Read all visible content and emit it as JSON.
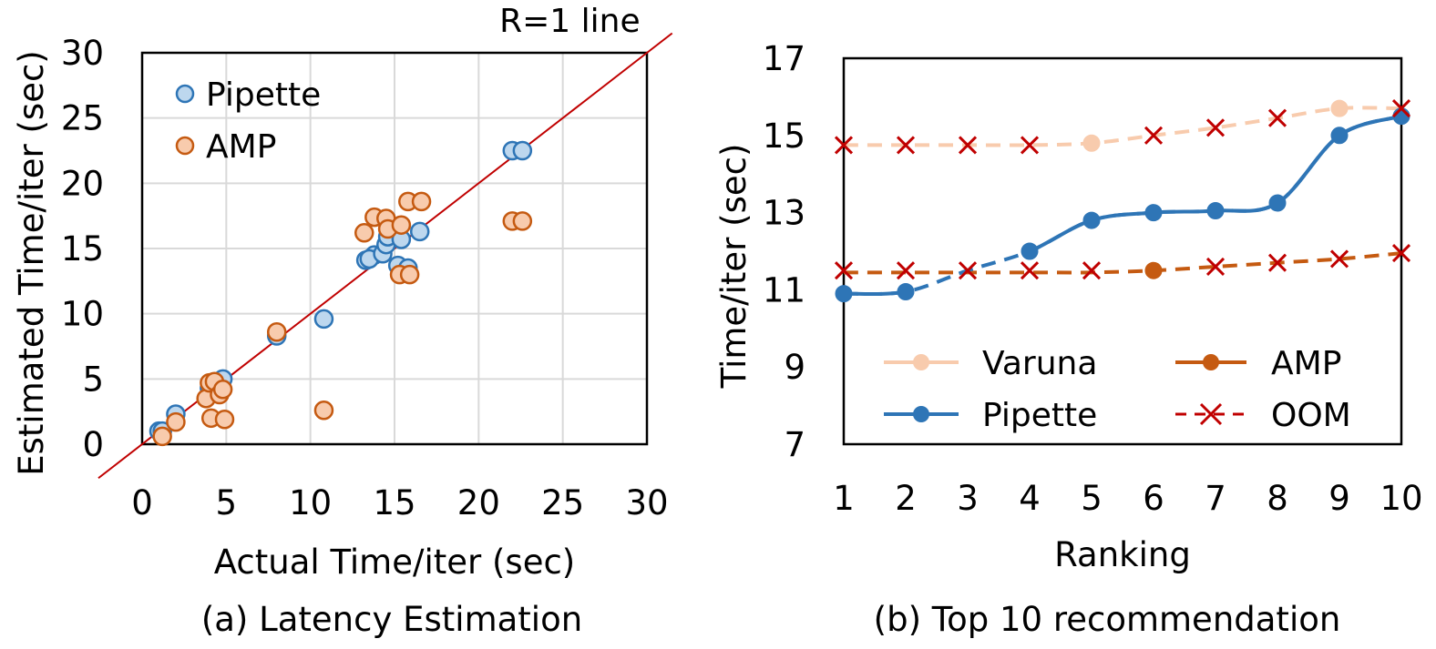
{
  "chart_data": [
    {
      "type": "scatter",
      "caption": "(a) Latency Estimation",
      "xlabel": "Actual Time/iter (sec)",
      "ylabel": "Estimated Time/iter (sec)",
      "xlim": [
        0,
        30
      ],
      "ylim": [
        0,
        30
      ],
      "xticks": [
        "0",
        "5",
        "10",
        "15",
        "20",
        "25",
        "30"
      ],
      "yticks": [
        "0",
        "5",
        "10",
        "15",
        "20",
        "25",
        "30"
      ],
      "grid": true,
      "legend_position": "top-left",
      "reference_line": {
        "label": "R=1 line",
        "color": "#C00000"
      },
      "series": [
        {
          "name": "Pipette",
          "fill": "#BDD7EE",
          "stroke": "#2E75B6",
          "points": [
            [
              1.0,
              1.0
            ],
            [
              1.2,
              1.0
            ],
            [
              2.0,
              2.3
            ],
            [
              4.0,
              4.3
            ],
            [
              4.2,
              4.0
            ],
            [
              4.8,
              5.0
            ],
            [
              8.0,
              8.3
            ],
            [
              10.8,
              9.6
            ],
            [
              13.3,
              14.1
            ],
            [
              13.8,
              14.5
            ],
            [
              13.5,
              14.2
            ],
            [
              14.3,
              14.6
            ],
            [
              14.5,
              15.3
            ],
            [
              14.6,
              15.9
            ],
            [
              15.4,
              15.7
            ],
            [
              15.2,
              13.7
            ],
            [
              15.8,
              13.5
            ],
            [
              16.5,
              16.3
            ],
            [
              22.0,
              22.5
            ],
            [
              22.6,
              22.5
            ]
          ]
        },
        {
          "name": "AMP",
          "fill": "#F8CBAD",
          "stroke": "#C55A11",
          "points": [
            [
              1.2,
              0.6
            ],
            [
              2.0,
              1.7
            ],
            [
              3.8,
              3.5
            ],
            [
              4.0,
              4.7
            ],
            [
              4.3,
              4.8
            ],
            [
              4.6,
              3.8
            ],
            [
              4.8,
              4.2
            ],
            [
              4.1,
              2.0
            ],
            [
              4.9,
              1.9
            ],
            [
              8.0,
              8.6
            ],
            [
              10.8,
              2.6
            ],
            [
              13.2,
              16.2
            ],
            [
              13.8,
              17.4
            ],
            [
              14.5,
              17.3
            ],
            [
              14.6,
              16.5
            ],
            [
              15.4,
              16.8
            ],
            [
              15.8,
              18.6
            ],
            [
              16.6,
              18.6
            ],
            [
              15.3,
              13.0
            ],
            [
              15.9,
              13.0
            ],
            [
              22.0,
              17.1
            ],
            [
              22.6,
              17.1
            ]
          ]
        }
      ]
    },
    {
      "type": "line",
      "caption": "(b) Top 10 recommendation",
      "xlabel": "Ranking",
      "ylabel": "Time/iter (sec)",
      "categories": [
        "1",
        "2",
        "3",
        "4",
        "5",
        "6",
        "7",
        "8",
        "9",
        "10"
      ],
      "ylim": [
        7,
        17
      ],
      "yticks": [
        "7",
        "9",
        "11",
        "13",
        "15",
        "17"
      ],
      "grid": false,
      "legend_position": "bottom",
      "series": [
        {
          "name": "Varuna",
          "color": "#F8CBAD",
          "values": [
            14.75,
            14.75,
            14.75,
            14.75,
            14.8,
            15.0,
            15.2,
            15.45,
            15.7,
            15.7
          ],
          "markers": [
            null,
            null,
            null,
            null,
            "circle",
            null,
            null,
            null,
            "circle",
            null
          ]
        },
        {
          "name": "Pipette",
          "color": "#2E75B6",
          "values": [
            10.9,
            10.95,
            11.5,
            12.0,
            12.8,
            13.0,
            13.05,
            13.25,
            15.0,
            15.5
          ],
          "markers": [
            "circle",
            "circle",
            null,
            "circle",
            "circle",
            "circle",
            "circle",
            "circle",
            "circle",
            "circle"
          ]
        },
        {
          "name": "AMP",
          "color": "#C55A11",
          "values": [
            11.45,
            11.45,
            11.45,
            11.45,
            11.45,
            11.5,
            11.6,
            11.7,
            11.8,
            11.95
          ],
          "markers": [
            null,
            null,
            null,
            null,
            null,
            "circle",
            null,
            null,
            null,
            null
          ]
        },
        {
          "name": "OOM",
          "color": "#C00000",
          "marker": "x",
          "points": [
            [
              1,
              14.75
            ],
            [
              2,
              14.75
            ],
            [
              3,
              14.75
            ],
            [
              4,
              14.75
            ],
            [
              6,
              15.0
            ],
            [
              7,
              15.2
            ],
            [
              8,
              15.45
            ],
            [
              10,
              15.7
            ],
            [
              1,
              11.5
            ],
            [
              2,
              11.5
            ],
            [
              3,
              11.5
            ],
            [
              4,
              11.5
            ],
            [
              5,
              11.5
            ],
            [
              7,
              11.6
            ],
            [
              8,
              11.7
            ],
            [
              9,
              11.8
            ],
            [
              10,
              11.95
            ]
          ]
        }
      ]
    }
  ]
}
